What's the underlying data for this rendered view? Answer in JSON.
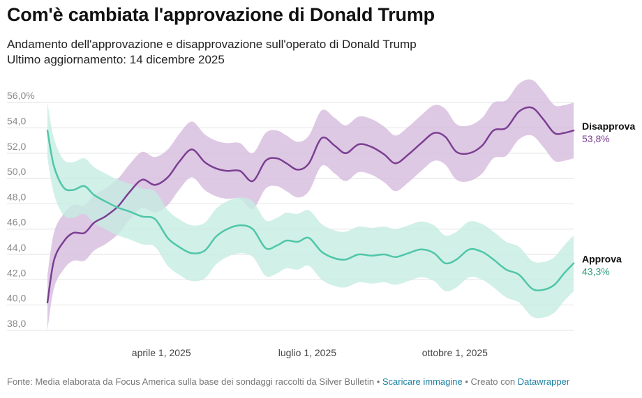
{
  "header": {
    "title": "Com'è cambiata l'approvazione di Donald Trump",
    "subtitle_line1": "Andamento dell'approvazione e disapprovazione sull'operato di Donald Trump",
    "subtitle_line2": "Ultimo aggiornamento: 14 dicembre 2025"
  },
  "footer": {
    "source": "Fonte: Media elaborata da Focus America sulla base dei sondaggi raccolti da Silver Bulletin",
    "sep1": " • ",
    "download_label": "Scaricare immagine",
    "sep2": " • Creato con ",
    "datawrapper_label": "Datawrapper"
  },
  "colors": {
    "approve": "#4fc6a8",
    "approve_band": "#c6ece2",
    "disapprove": "#7b3f92",
    "disapprove_band": "#d6bcdd",
    "approve_value_text": "#2f9b7f",
    "disapprove_value_text": "#7b3f92",
    "grid": "#e2e2e2"
  },
  "chart_data": {
    "type": "line",
    "ylim": [
      37.5,
      57.5
    ],
    "yticks": [
      38,
      40,
      42,
      44,
      46,
      48,
      50,
      52,
      54,
      56
    ],
    "ytick_labels": [
      "38,0",
      "40,0",
      "42,0",
      "44,0",
      "46,0",
      "48,0",
      "50,0",
      "52,0",
      "54,0",
      "56,0%"
    ],
    "xlim": [
      "2025-01-20",
      "2025-12-14"
    ],
    "xticks": [
      {
        "date": "2025-04-01",
        "label": "aprile 1, 2025"
      },
      {
        "date": "2025-07-01",
        "label": "luglio 1, 2025"
      },
      {
        "date": "2025-10-01",
        "label": "ottobre 1, 2025"
      }
    ],
    "grid": true,
    "legend": "direct labels at line ends",
    "series": [
      {
        "name": "Disapprova",
        "end_label": "53,8%",
        "dates": [
          "2025-01-20",
          "2025-01-24",
          "2025-01-30",
          "2025-02-05",
          "2025-02-12",
          "2025-02-18",
          "2025-02-25",
          "2025-03-05",
          "2025-03-12",
          "2025-03-20",
          "2025-03-28",
          "2025-04-05",
          "2025-04-12",
          "2025-04-20",
          "2025-04-28",
          "2025-05-05",
          "2025-05-12",
          "2025-05-20",
          "2025-05-28",
          "2025-06-05",
          "2025-06-12",
          "2025-06-18",
          "2025-06-25",
          "2025-07-02",
          "2025-07-10",
          "2025-07-18",
          "2025-07-25",
          "2025-08-02",
          "2025-08-10",
          "2025-08-18",
          "2025-08-25",
          "2025-09-02",
          "2025-09-10",
          "2025-09-18",
          "2025-09-25",
          "2025-10-02",
          "2025-10-10",
          "2025-10-18",
          "2025-10-25",
          "2025-11-02",
          "2025-11-10",
          "2025-11-18",
          "2025-11-25",
          "2025-12-02",
          "2025-12-08",
          "2025-12-14"
        ],
        "values": [
          40.2,
          43.5,
          45.0,
          45.7,
          45.7,
          46.5,
          47.0,
          47.8,
          48.9,
          49.9,
          49.5,
          50.1,
          51.3,
          52.3,
          51.3,
          50.8,
          50.6,
          50.6,
          49.8,
          51.4,
          51.6,
          51.2,
          50.7,
          51.2,
          53.2,
          52.6,
          52.0,
          52.7,
          52.5,
          51.9,
          51.2,
          51.9,
          52.8,
          53.6,
          53.3,
          52.1,
          52.0,
          52.6,
          53.8,
          54.0,
          55.3,
          55.6,
          54.7,
          53.6,
          53.6,
          53.8
        ],
        "band": {
          "half_width": 2.2
        }
      },
      {
        "name": "Approva",
        "end_label": "43,3%",
        "dates": [
          "2025-01-20",
          "2025-01-24",
          "2025-01-30",
          "2025-02-05",
          "2025-02-12",
          "2025-02-18",
          "2025-02-25",
          "2025-03-05",
          "2025-03-12",
          "2025-03-20",
          "2025-03-28",
          "2025-04-05",
          "2025-04-12",
          "2025-04-20",
          "2025-04-28",
          "2025-05-05",
          "2025-05-12",
          "2025-05-20",
          "2025-05-28",
          "2025-06-05",
          "2025-06-12",
          "2025-06-18",
          "2025-06-25",
          "2025-07-02",
          "2025-07-10",
          "2025-07-18",
          "2025-07-25",
          "2025-08-02",
          "2025-08-10",
          "2025-08-18",
          "2025-08-25",
          "2025-09-02",
          "2025-09-10",
          "2025-09-18",
          "2025-09-25",
          "2025-10-02",
          "2025-10-10",
          "2025-10-18",
          "2025-10-25",
          "2025-11-02",
          "2025-11-10",
          "2025-11-18",
          "2025-11-25",
          "2025-12-02",
          "2025-12-08",
          "2025-12-14"
        ],
        "values": [
          53.8,
          51.0,
          49.3,
          49.1,
          49.4,
          48.7,
          48.2,
          47.7,
          47.4,
          47.0,
          46.8,
          45.3,
          44.6,
          44.1,
          44.3,
          45.4,
          46.0,
          46.3,
          46.0,
          44.5,
          44.7,
          45.1,
          45.0,
          45.3,
          44.2,
          43.7,
          43.6,
          44.0,
          43.9,
          44.0,
          43.8,
          44.1,
          44.4,
          44.1,
          43.3,
          43.6,
          44.4,
          44.2,
          43.6,
          42.8,
          42.4,
          41.3,
          41.2,
          41.6,
          42.5,
          43.3
        ],
        "band": {
          "half_width": 2.2
        }
      }
    ]
  }
}
